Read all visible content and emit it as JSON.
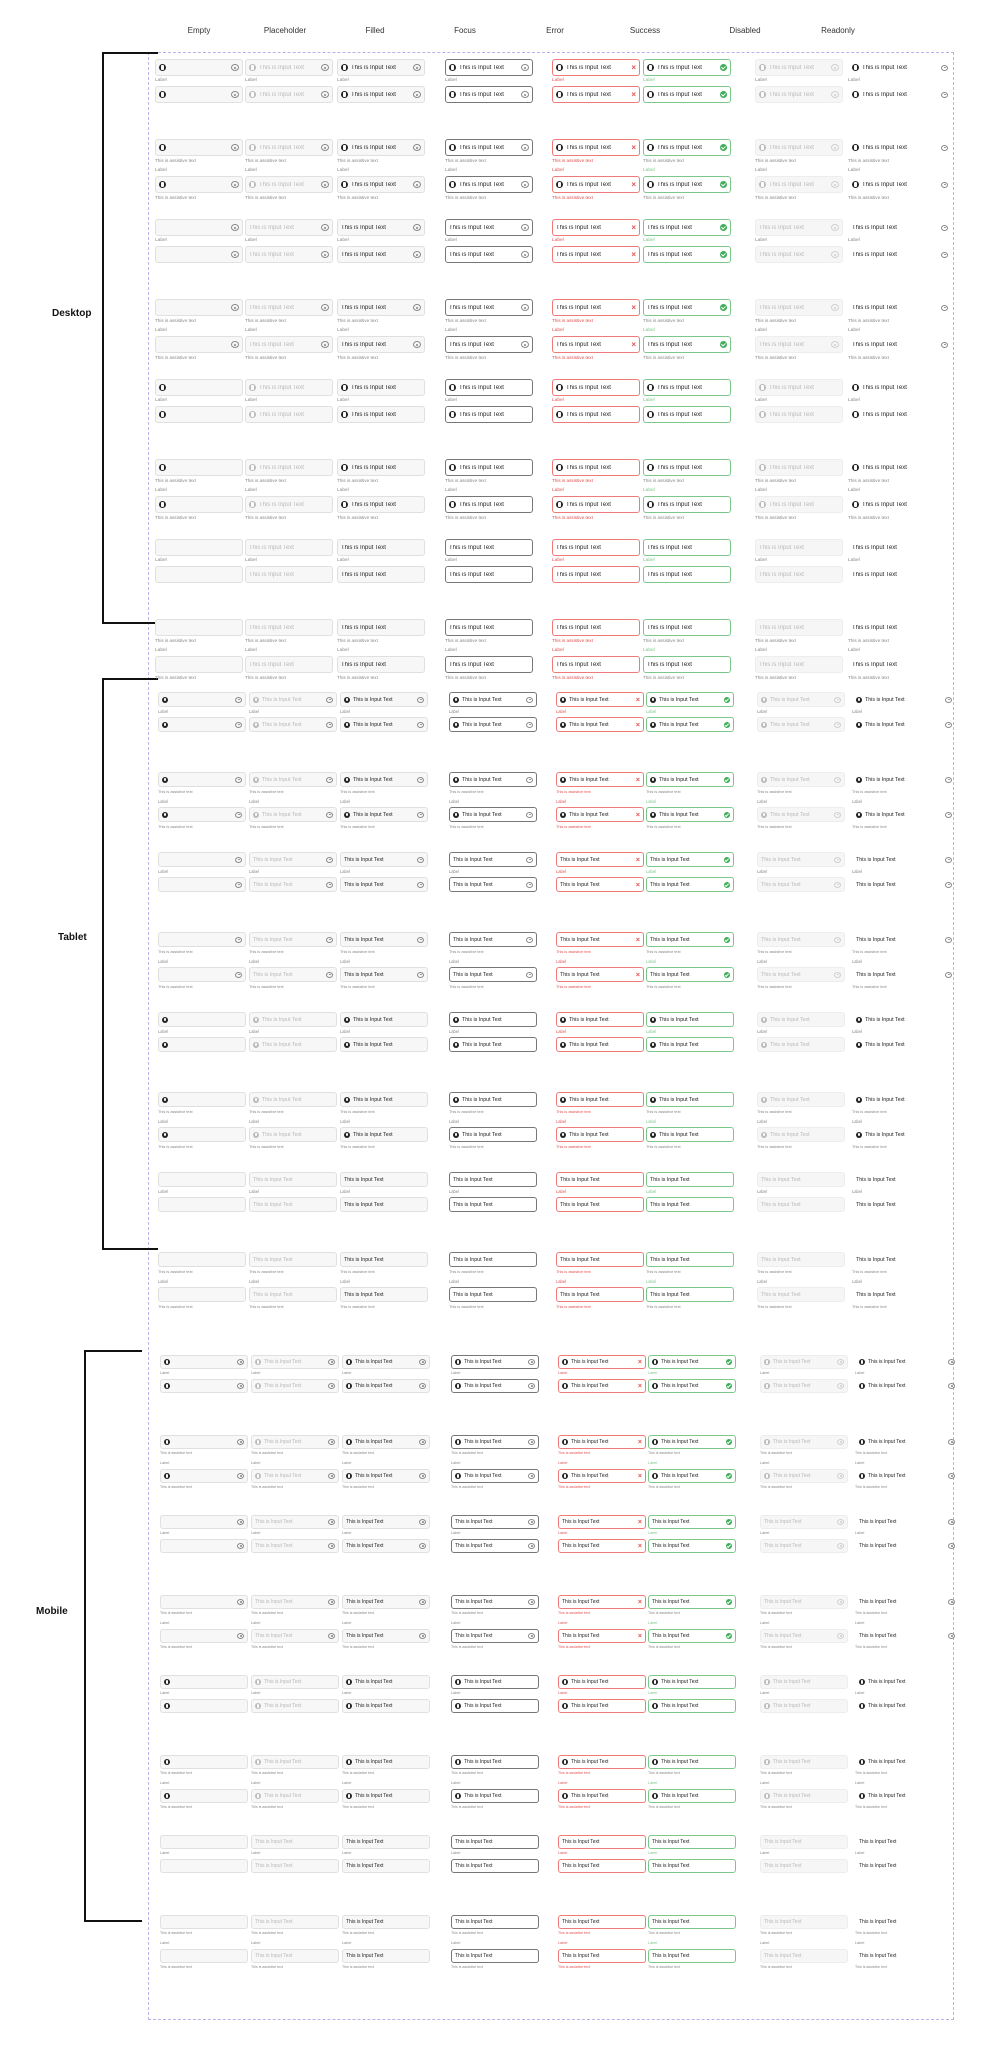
{
  "columns": [
    "Empty",
    "Placeholder",
    "Filled",
    "Focus",
    "Error",
    "Success",
    "Disabled",
    "Readonly"
  ],
  "sections": [
    {
      "name": "Desktop"
    },
    {
      "name": "Tablet"
    },
    {
      "name": "Mobile"
    }
  ],
  "field": {
    "input_value": "This is Input Text",
    "placeholder": "This is Input Text",
    "label": "Label",
    "helper": "This is assistive text"
  },
  "states": [
    "empty",
    "placeholder",
    "filled",
    "focus",
    "error",
    "success",
    "disabled",
    "readonly"
  ],
  "variants": [
    {
      "lead_icon": true,
      "trail_icon": true,
      "helper": false
    },
    {
      "lead_icon": true,
      "trail_icon": true,
      "helper": true
    },
    {
      "lead_icon": false,
      "trail_icon": true,
      "helper": false
    },
    {
      "lead_icon": false,
      "trail_icon": true,
      "helper": true
    },
    {
      "lead_icon": true,
      "trail_icon": false,
      "helper": false
    },
    {
      "lead_icon": true,
      "trail_icon": false,
      "helper": true
    },
    {
      "lead_icon": false,
      "trail_icon": false,
      "helper": false
    },
    {
      "lead_icon": false,
      "trail_icon": false,
      "helper": true
    }
  ],
  "icons": {
    "leading": "info-icon",
    "trailing": "eye-icon",
    "error": "close-icon",
    "success": "check-circle-icon"
  },
  "colors": {
    "error": "#e05252",
    "success": "#3fae5a",
    "focus_border": "#777777",
    "frame_border": "#b9b2ea"
  }
}
